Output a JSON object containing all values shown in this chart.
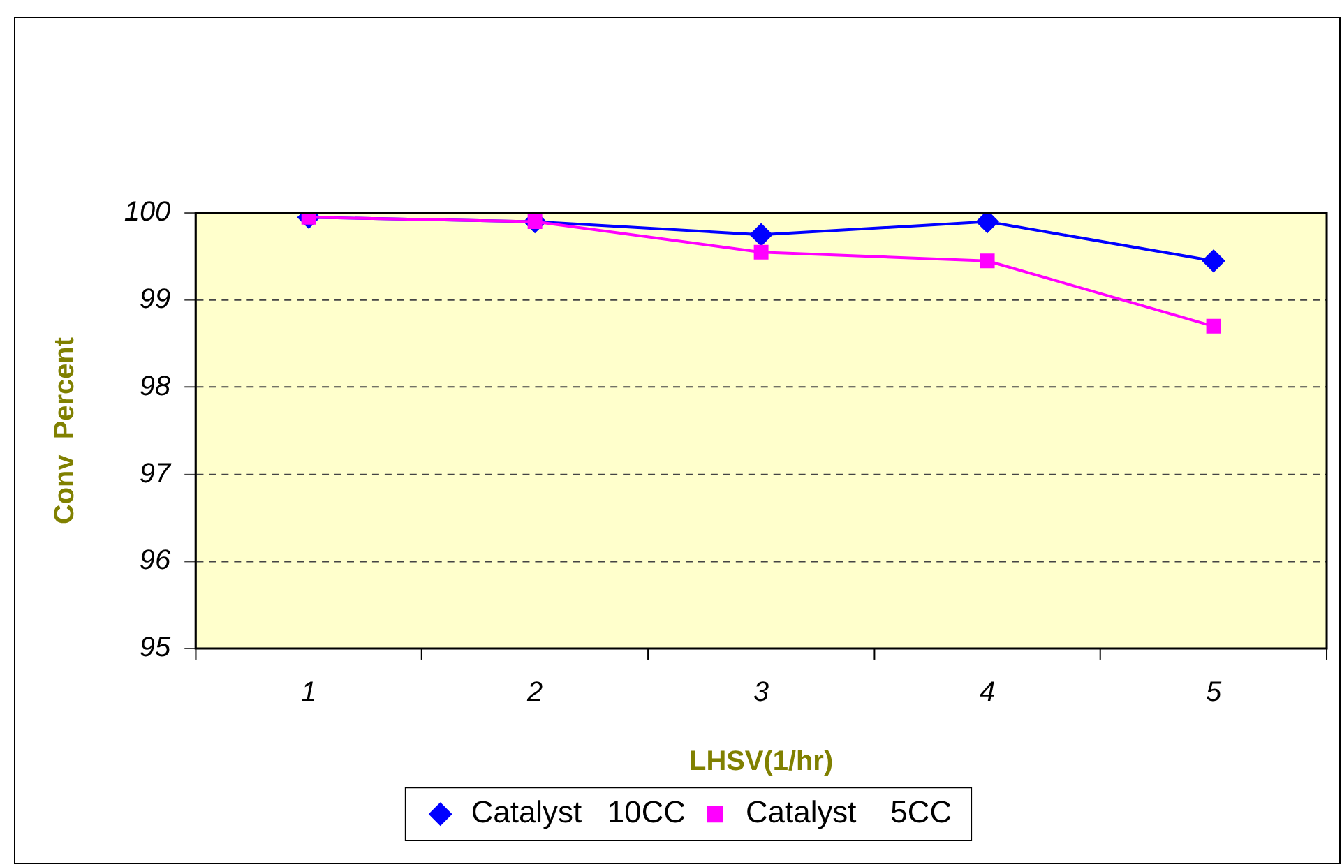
{
  "chart_data": {
    "type": "line",
    "xlabel": "LHSV(1/hr)",
    "ylabel": "Conv  Percent",
    "categories": [
      "1",
      "2",
      "3",
      "4",
      "5"
    ],
    "series": [
      {
        "name": "Catalyst   10CC",
        "color": "#0000ff",
        "marker": "diamond",
        "values": [
          99.95,
          99.9,
          99.75,
          99.9,
          99.45
        ]
      },
      {
        "name": "Catalyst    5CC",
        "color": "#ff00ff",
        "marker": "square",
        "values": [
          99.95,
          99.9,
          99.55,
          99.45,
          98.7
        ]
      }
    ],
    "ylim": [
      95,
      100
    ],
    "yticks": [
      95,
      96,
      97,
      98,
      99,
      100
    ],
    "grid": "y",
    "legend": "bottom",
    "line_style": "solid"
  }
}
